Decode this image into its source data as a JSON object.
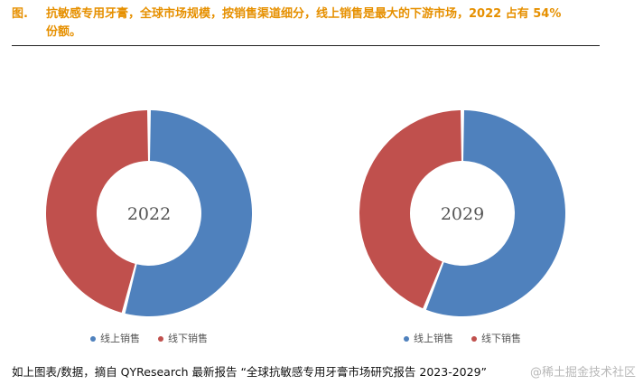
{
  "caption": {
    "label": "图.",
    "line1": "抗敏感专用牙膏，全球市场规模，按销售渠道细分，线上销售是最大的下游市场，2022 占有 54%",
    "line2": "份额。"
  },
  "colors": {
    "online": "#4f81bd",
    "offline": "#c0504d",
    "caption": "#e69000"
  },
  "chart_data": [
    {
      "type": "pie",
      "center_label": "2022",
      "categories": [
        "线上销售",
        "线下销售"
      ],
      "values": [
        54,
        46
      ],
      "legend_position": "bottom"
    },
    {
      "type": "pie",
      "center_label": "2029",
      "categories": [
        "线上销售",
        "线下销售"
      ],
      "values": [
        56,
        44
      ],
      "legend_position": "bottom"
    }
  ],
  "source_text": "如上图表/数据，摘自 QYResearch 最新报告 “全球抗敏感专用牙膏市场研究报告 2023-2029”",
  "watermark": "@稀土掘金技术社区"
}
